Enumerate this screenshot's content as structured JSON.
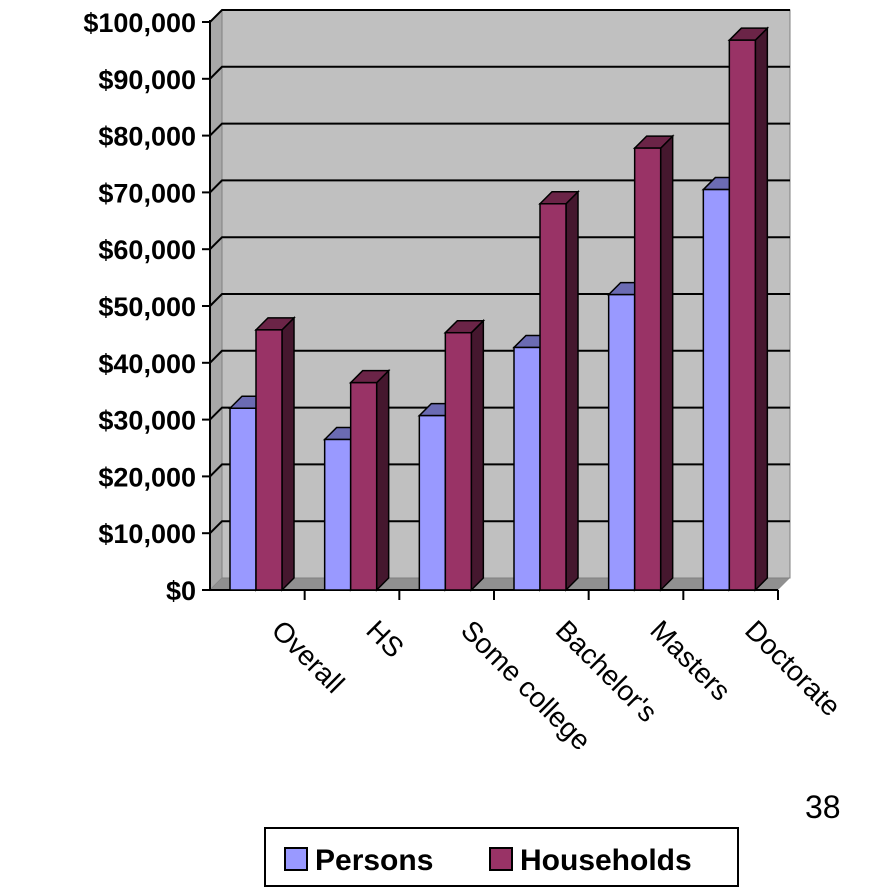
{
  "chart_data": {
    "type": "bar",
    "categories": [
      "Overall",
      "HS",
      "Some college",
      "Bachelor's",
      "Masters",
      "Doctorate"
    ],
    "series": [
      {
        "name": "Persons",
        "values": [
          32000,
          26500,
          30700,
          42700,
          52000,
          70500
        ],
        "color": "#9999ff"
      },
      {
        "name": "Households",
        "values": [
          45800,
          36500,
          45300,
          68000,
          77800,
          96800
        ],
        "color": "#993366"
      }
    ],
    "y_tick_labels": [
      "$0",
      "$10,000",
      "$20,000",
      "$30,000",
      "$40,000",
      "$50,000",
      "$60,000",
      "$70,000",
      "$80,000",
      "$90,000",
      "$100,000"
    ],
    "ylim": [
      0,
      100000
    ],
    "grid": true,
    "legend_position": "bottom",
    "plot_background": "#c0c0c0"
  },
  "page_number": "38"
}
